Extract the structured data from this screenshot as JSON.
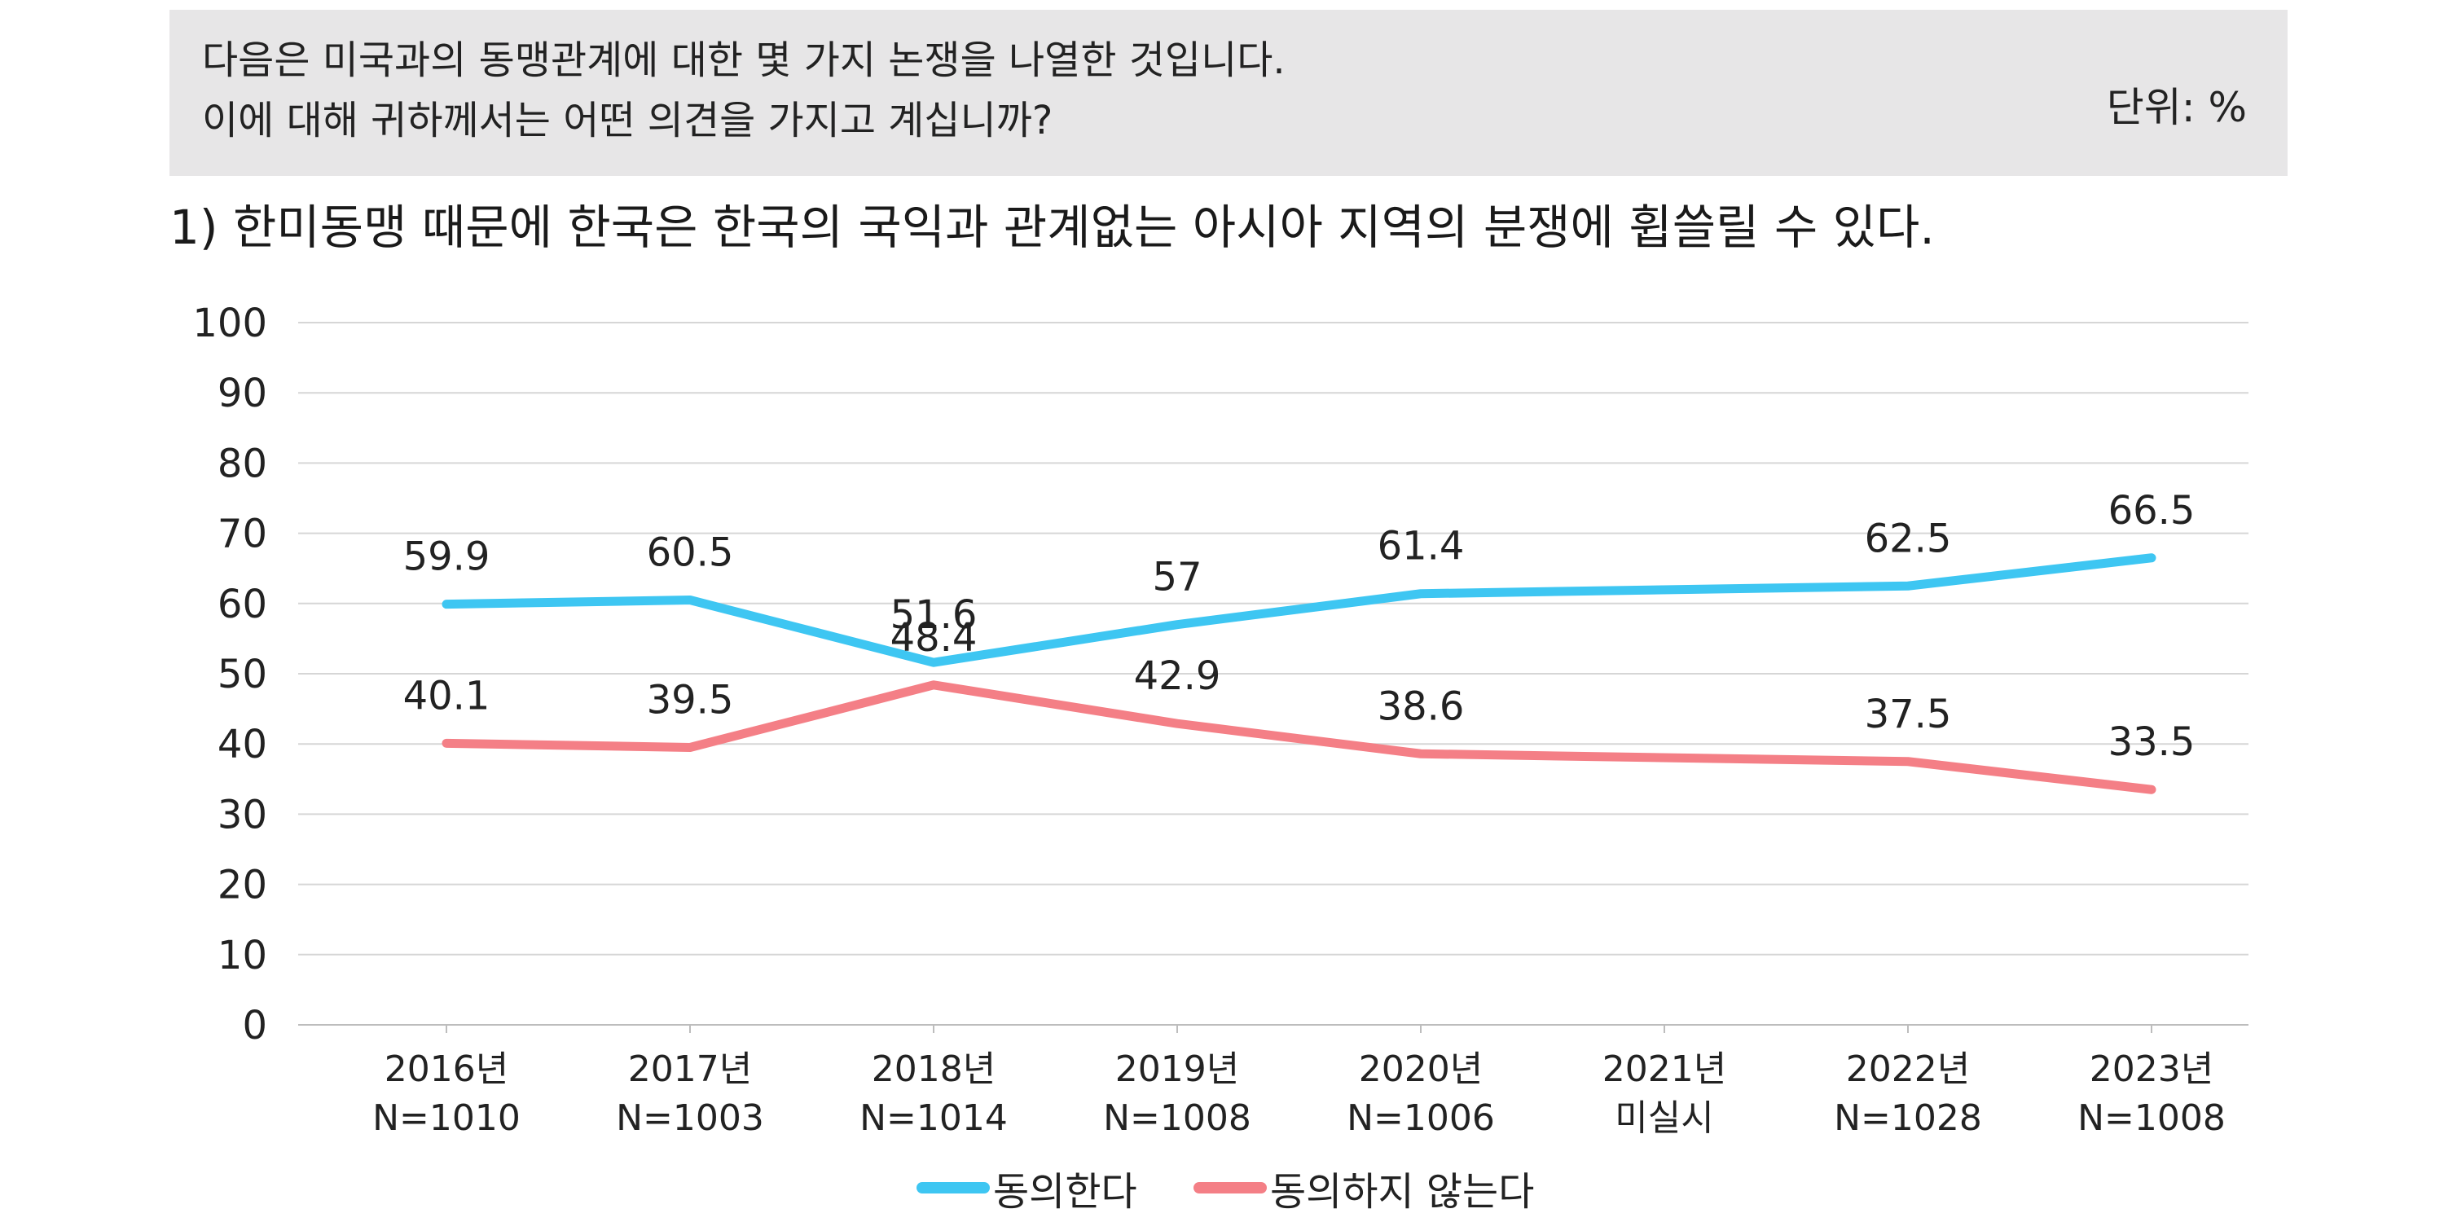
{
  "header": {
    "question_line1": "다음은 미국과의 동맹관계에 대한 몇 가지 논쟁을 나열한 것입니다.",
    "question_line2": "이에 대해 귀하께서는 어떤 의견을 가지고 계십니까?",
    "unit": "단위: %"
  },
  "subtitle": "1) 한미동맹 때문에 한국은 한국의 국익과 관계없는 아시아 지역의 분쟁에 휩쓸릴 수 있다.",
  "chart_data": {
    "type": "line",
    "categories": [
      {
        "year": "2016년",
        "sub": "N=1010"
      },
      {
        "year": "2017년",
        "sub": "N=1003"
      },
      {
        "year": "2018년",
        "sub": "N=1014"
      },
      {
        "year": "2019년",
        "sub": "N=1008"
      },
      {
        "year": "2020년",
        "sub": "N=1006"
      },
      {
        "year": "2021년",
        "sub": "미실시"
      },
      {
        "year": "2022년",
        "sub": "N=1028"
      },
      {
        "year": "2023년",
        "sub": "N=1008"
      }
    ],
    "ylim": [
      0,
      100
    ],
    "yticks": [
      0,
      10,
      20,
      30,
      40,
      50,
      60,
      70,
      80,
      90,
      100
    ],
    "grid": true,
    "legend_position": "bottom",
    "series": [
      {
        "name": "동의한다",
        "color": "#3ec6f2",
        "values": [
          59.9,
          60.5,
          51.6,
          57,
          61.4,
          null,
          62.5,
          66.5
        ],
        "labels": [
          "59.9",
          "60.5",
          "51.6",
          "57",
          "61.4",
          null,
          "62.5",
          "66.5"
        ]
      },
      {
        "name": "동의하지 않는다",
        "color": "#f47f86",
        "values": [
          40.1,
          39.5,
          48.4,
          42.9,
          38.6,
          null,
          37.5,
          33.5
        ],
        "labels": [
          "40.1",
          "39.5",
          "48.4",
          "42.9",
          "38.6",
          null,
          "37.5",
          "33.5"
        ]
      }
    ]
  }
}
